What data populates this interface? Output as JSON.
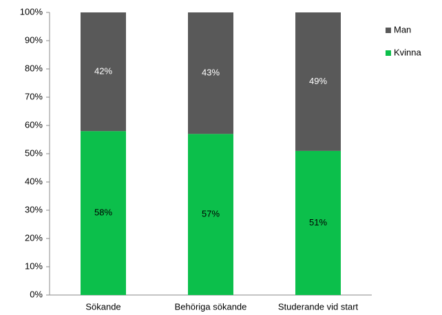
{
  "chart_data": {
    "type": "bar",
    "stacked": true,
    "categories": [
      "Sökande",
      "Behöriga sökande",
      "Studerande vid start"
    ],
    "series": [
      {
        "name": "Kvinna",
        "color": "#0cbf4b",
        "values": [
          58,
          57,
          51
        ],
        "value_labels": [
          "58%",
          "57%",
          "51%"
        ]
      },
      {
        "name": "Man",
        "color": "#595959",
        "values": [
          42,
          43,
          49
        ],
        "value_labels": [
          "42%",
          "43%",
          "49%"
        ]
      }
    ],
    "ylim": [
      0,
      100
    ],
    "yticks": [
      {
        "value": 0,
        "label": "0%"
      },
      {
        "value": 10,
        "label": "10%"
      },
      {
        "value": 20,
        "label": "20%"
      },
      {
        "value": 30,
        "label": "30%"
      },
      {
        "value": 40,
        "label": "40%"
      },
      {
        "value": 50,
        "label": "50%"
      },
      {
        "value": 60,
        "label": "60%"
      },
      {
        "value": 70,
        "label": "70%"
      },
      {
        "value": 80,
        "label": "80%"
      },
      {
        "value": 90,
        "label": "90%"
      },
      {
        "value": 100,
        "label": "100%"
      }
    ],
    "grid": false,
    "legend": "right"
  }
}
